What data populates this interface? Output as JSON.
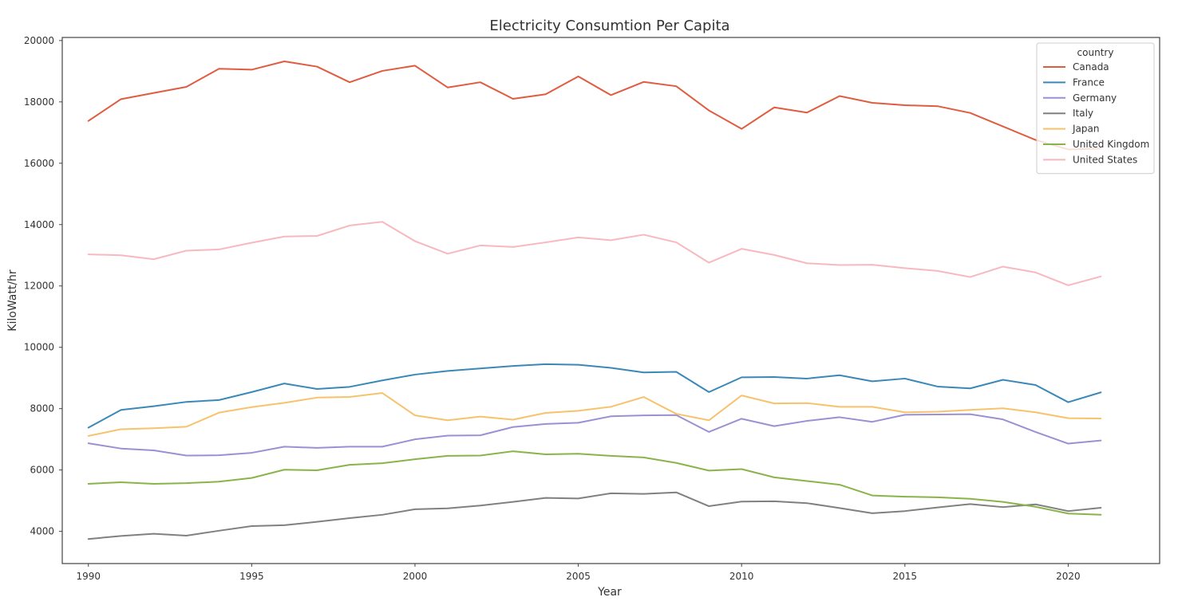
{
  "chart_data": {
    "type": "line",
    "title": "Electricity Consumtion Per Capita",
    "xlabel": "Year",
    "ylabel": "KiloWatt/hr",
    "xlim": [
      1989.2,
      2022.8
    ],
    "ylim": [
      2950,
      20100
    ],
    "x_ticks": [
      1990,
      1995,
      2000,
      2005,
      2010,
      2015,
      2020
    ],
    "y_ticks": [
      4000,
      6000,
      8000,
      10000,
      12000,
      14000,
      16000,
      18000,
      20000
    ],
    "x_tick_labels": [
      "1990",
      "1995",
      "2000",
      "2005",
      "2010",
      "2015",
      "2020"
    ],
    "y_tick_labels": [
      "4000",
      "6000",
      "8000",
      "10000",
      "12000",
      "14000",
      "16000",
      "18000",
      "20000"
    ],
    "grid": false,
    "legend": {
      "title": "country",
      "placement": "top-right"
    },
    "x": [
      1990,
      1991,
      1992,
      1993,
      1994,
      1995,
      1996,
      1997,
      1998,
      1999,
      2000,
      2001,
      2002,
      2003,
      2004,
      2005,
      2006,
      2007,
      2008,
      2009,
      2010,
      2011,
      2012,
      2013,
      2014,
      2015,
      2016,
      2017,
      2018,
      2019,
      2020,
      2021
    ],
    "series": [
      {
        "name": "Canada",
        "color": "#e05c40",
        "values": [
          17380,
          18090,
          18290,
          18490,
          19080,
          19050,
          19320,
          19150,
          18640,
          19010,
          19180,
          18470,
          18640,
          18100,
          18250,
          18830,
          18220,
          18650,
          18510,
          17720,
          17120,
          17820,
          17650,
          18190,
          17970,
          17890,
          17860,
          17640,
          17200,
          16760,
          16450,
          16480
        ]
      },
      {
        "name": "France",
        "color": "#3a88b8",
        "values": [
          7380,
          7960,
          8080,
          8220,
          8280,
          8540,
          8820,
          8640,
          8710,
          8920,
          9110,
          9230,
          9310,
          9390,
          9450,
          9430,
          9330,
          9180,
          9200,
          8540,
          9020,
          9030,
          8980,
          9090,
          8890,
          8980,
          8720,
          8660,
          8940,
          8770,
          8210,
          8530
        ]
      },
      {
        "name": "Germany",
        "color": "#9b90d4",
        "values": [
          6870,
          6700,
          6640,
          6470,
          6480,
          6560,
          6760,
          6720,
          6760,
          6760,
          7000,
          7120,
          7130,
          7400,
          7500,
          7540,
          7750,
          7780,
          7790,
          7240,
          7670,
          7430,
          7600,
          7720,
          7570,
          7800,
          7810,
          7820,
          7650,
          7240,
          6860,
          6960
        ]
      },
      {
        "name": "Italy",
        "color": "#808080",
        "values": [
          3750,
          3850,
          3920,
          3860,
          4020,
          4170,
          4200,
          4310,
          4430,
          4540,
          4720,
          4750,
          4840,
          4960,
          5090,
          5070,
          5240,
          5220,
          5270,
          4820,
          4970,
          4980,
          4920,
          4760,
          4590,
          4660,
          4780,
          4890,
          4790,
          4880,
          4660,
          4770
        ]
      },
      {
        "name": "Japan",
        "color": "#f7c26c",
        "values": [
          7110,
          7330,
          7360,
          7410,
          7870,
          8050,
          8190,
          8360,
          8380,
          8510,
          7780,
          7620,
          7740,
          7640,
          7860,
          7930,
          8060,
          8380,
          7830,
          7620,
          8430,
          8170,
          8180,
          8060,
          8060,
          7880,
          7900,
          7960,
          8010,
          7880,
          7690,
          7680
        ]
      },
      {
        "name": "United Kingdom",
        "color": "#8ab34a",
        "values": [
          5550,
          5600,
          5550,
          5570,
          5620,
          5740,
          6010,
          5990,
          6170,
          6220,
          6350,
          6460,
          6470,
          6610,
          6510,
          6530,
          6460,
          6410,
          6230,
          5980,
          6030,
          5760,
          5640,
          5520,
          5170,
          5130,
          5110,
          5060,
          4960,
          4800,
          4580,
          4540
        ]
      },
      {
        "name": "United States",
        "color": "#f8b8be",
        "values": [
          13030,
          13000,
          12870,
          13150,
          13190,
          13410,
          13610,
          13630,
          13970,
          14090,
          13460,
          13050,
          13320,
          13270,
          13420,
          13580,
          13490,
          13670,
          13420,
          12760,
          13210,
          13010,
          12740,
          12680,
          12690,
          12580,
          12490,
          12290,
          12630,
          12440,
          12020,
          12310
        ]
      }
    ]
  }
}
